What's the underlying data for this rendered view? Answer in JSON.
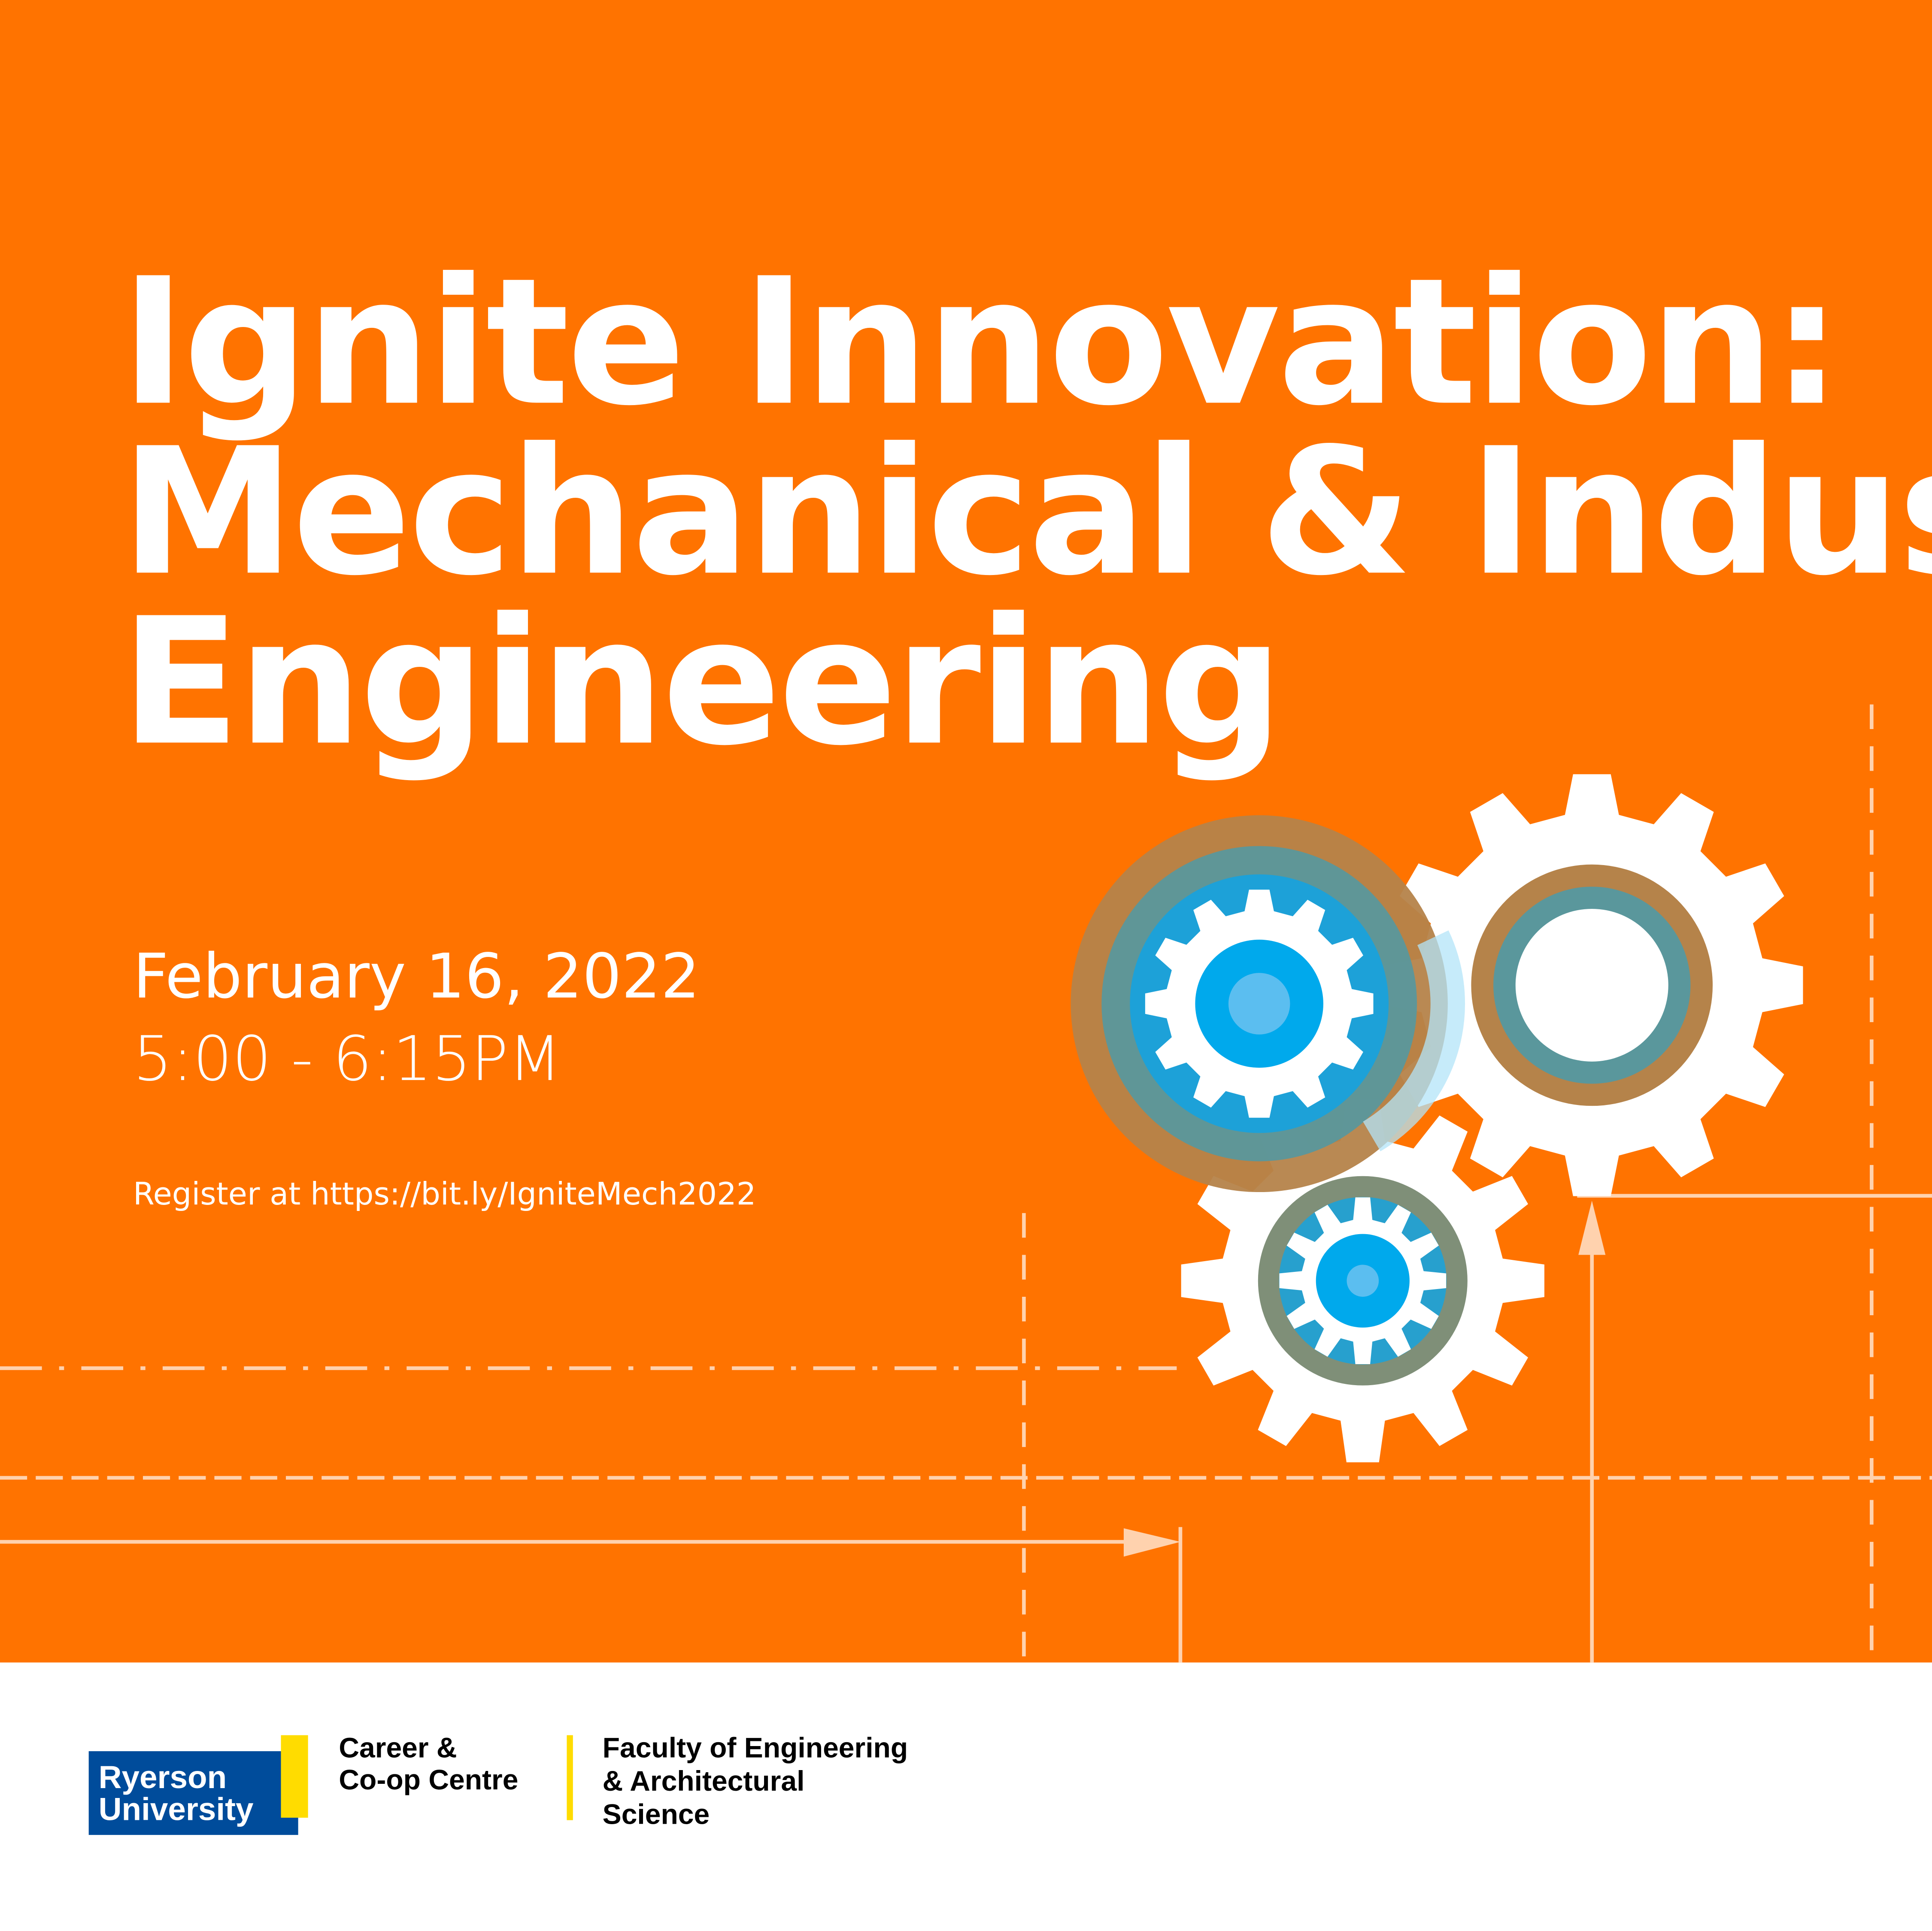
{
  "poster": {
    "title_lines": [
      "Ignite Innovation:",
      "Mechanical & Industrial",
      "Engineering"
    ],
    "date": "February 16, 2022",
    "time": "5:00 - 6:15PM",
    "register": "Register at https://bit.ly/IgniteMech2022"
  },
  "footer": {
    "ryerson_logo": [
      "Ryerson",
      "University"
    ],
    "career_centre": [
      "Career &",
      "Co-op Centre"
    ],
    "faculty": [
      "Faculty of Engineering",
      "& Architectural",
      "Science"
    ]
  },
  "colors": {
    "background": "#FF7300",
    "ryerson_blue": "#004C9B",
    "ryerson_yellow": "#FFDC00",
    "gear_blue": "#00A9EC",
    "gear_ring_brown": "#B5834A",
    "gear_ring_teal": "#5A979C"
  },
  "icons": [
    "gear-icon",
    "arrow-up-icon",
    "arrow-right-icon"
  ]
}
